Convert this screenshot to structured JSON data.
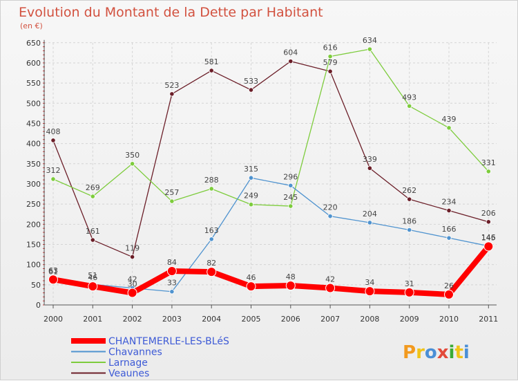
{
  "chart_data": {
    "type": "line",
    "title": "Evolution du Montant de la Dette par Habitant",
    "subtitle": "(en €)",
    "xlabel": "",
    "ylabel": "",
    "ylim": [
      0,
      650
    ],
    "y_ticks": [
      0,
      50,
      100,
      150,
      200,
      250,
      300,
      350,
      400,
      450,
      500,
      550,
      600,
      650
    ],
    "categories": [
      "2000",
      "2001",
      "2002",
      "2003",
      "2004",
      "2005",
      "2006",
      "2007",
      "2008",
      "2009",
      "2010",
      "2011"
    ],
    "grid": true,
    "legend_position": "bottom-left",
    "series": [
      {
        "name": "Veaunes",
        "color": "#6b1e28",
        "values": [
          408,
          161,
          119,
          523,
          581,
          533,
          604,
          579,
          339,
          262,
          234,
          206
        ],
        "highlight": false
      },
      {
        "name": "Larnage",
        "color": "#7dcc3c",
        "values": [
          312,
          269,
          350,
          257,
          288,
          249,
          245,
          616,
          634,
          493,
          439,
          331
        ],
        "highlight": false
      },
      {
        "name": "Chavannes",
        "color": "#4f93cf",
        "values": [
          61,
          51,
          42,
          33,
          163,
          315,
          296,
          220,
          204,
          186,
          166,
          146
        ],
        "highlight": false
      },
      {
        "name": "CHANTEMERLE-LES-BLéS",
        "color": "#ff0000",
        "values": [
          63,
          46,
          30,
          84,
          82,
          46,
          48,
          42,
          34,
          31,
          26,
          145
        ],
        "highlight": true
      }
    ],
    "legend_order": [
      "CHANTEMERLE-LES-BLéS",
      "Chavannes",
      "Larnage",
      "Veaunes"
    ],
    "legend_colors": {
      "CHANTEMERLE-LES-BLéS": "#ff0000",
      "Chavannes": "#4f93cf",
      "Larnage": "#7dcc3c",
      "Veaunes": "#6b1e28"
    },
    "legend_text_color": "#3d5ad6"
  },
  "logo": {
    "letters": [
      "P",
      "r",
      "o",
      "x",
      "i",
      "t",
      "i"
    ],
    "colors": [
      "#f29a1f",
      "#f0c419",
      "#4b8fd6",
      "#e24a3a",
      "#3aaa35",
      "#f0c419",
      "#4b8fd6"
    ]
  }
}
